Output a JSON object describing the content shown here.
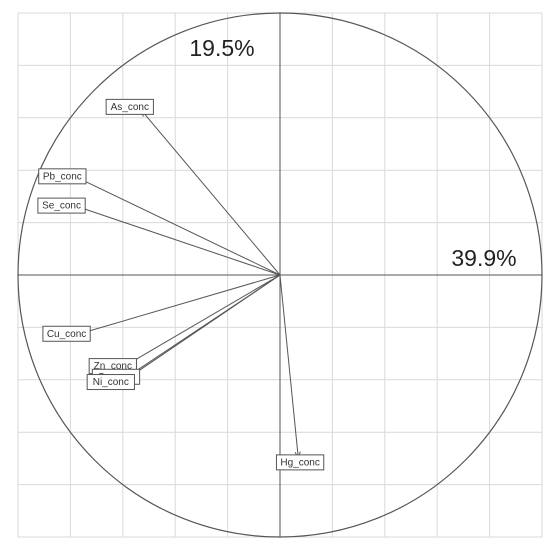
{
  "chart_data": {
    "type": "scatter",
    "subtype": "pca-correlation-circle",
    "xlim": [
      -1,
      1
    ],
    "ylim": [
      -1,
      1
    ],
    "grid": true,
    "axis_percentages": {
      "x": "39.9%",
      "y": "19.5%"
    },
    "variables": [
      {
        "name": "As_conc",
        "x": -0.53,
        "y": 0.63
      },
      {
        "name": "Pb_conc",
        "x": -0.77,
        "y": 0.37
      },
      {
        "name": "Se_conc",
        "x": -0.77,
        "y": 0.26
      },
      {
        "name": "Cu_conc",
        "x": -0.75,
        "y": -0.22
      },
      {
        "name": "Zn_conc",
        "x": -0.58,
        "y": -0.34
      },
      {
        "name": "Cr_conc",
        "x": -0.57,
        "y": -0.38
      },
      {
        "name": "Ni_conc",
        "x": -0.59,
        "y": -0.4
      },
      {
        "name": "Hg_conc",
        "x": 0.07,
        "y": -0.7
      }
    ]
  }
}
